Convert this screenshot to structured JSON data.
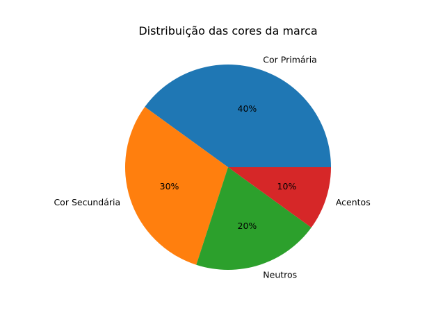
{
  "chart_data": {
    "type": "pie",
    "title": "Distribuição das cores da marca",
    "categories": [
      "Cor Primária",
      "Cor Secundária",
      "Neutros",
      "Acentos"
    ],
    "values": [
      40,
      30,
      20,
      10
    ],
    "percent_labels": [
      "40%",
      "30%",
      "20%",
      "10%"
    ],
    "colors": [
      "#1f77b4",
      "#ff7f0e",
      "#2ca02c",
      "#d62728"
    ],
    "start_angle_deg": 0,
    "direction": "counterclockwise"
  }
}
